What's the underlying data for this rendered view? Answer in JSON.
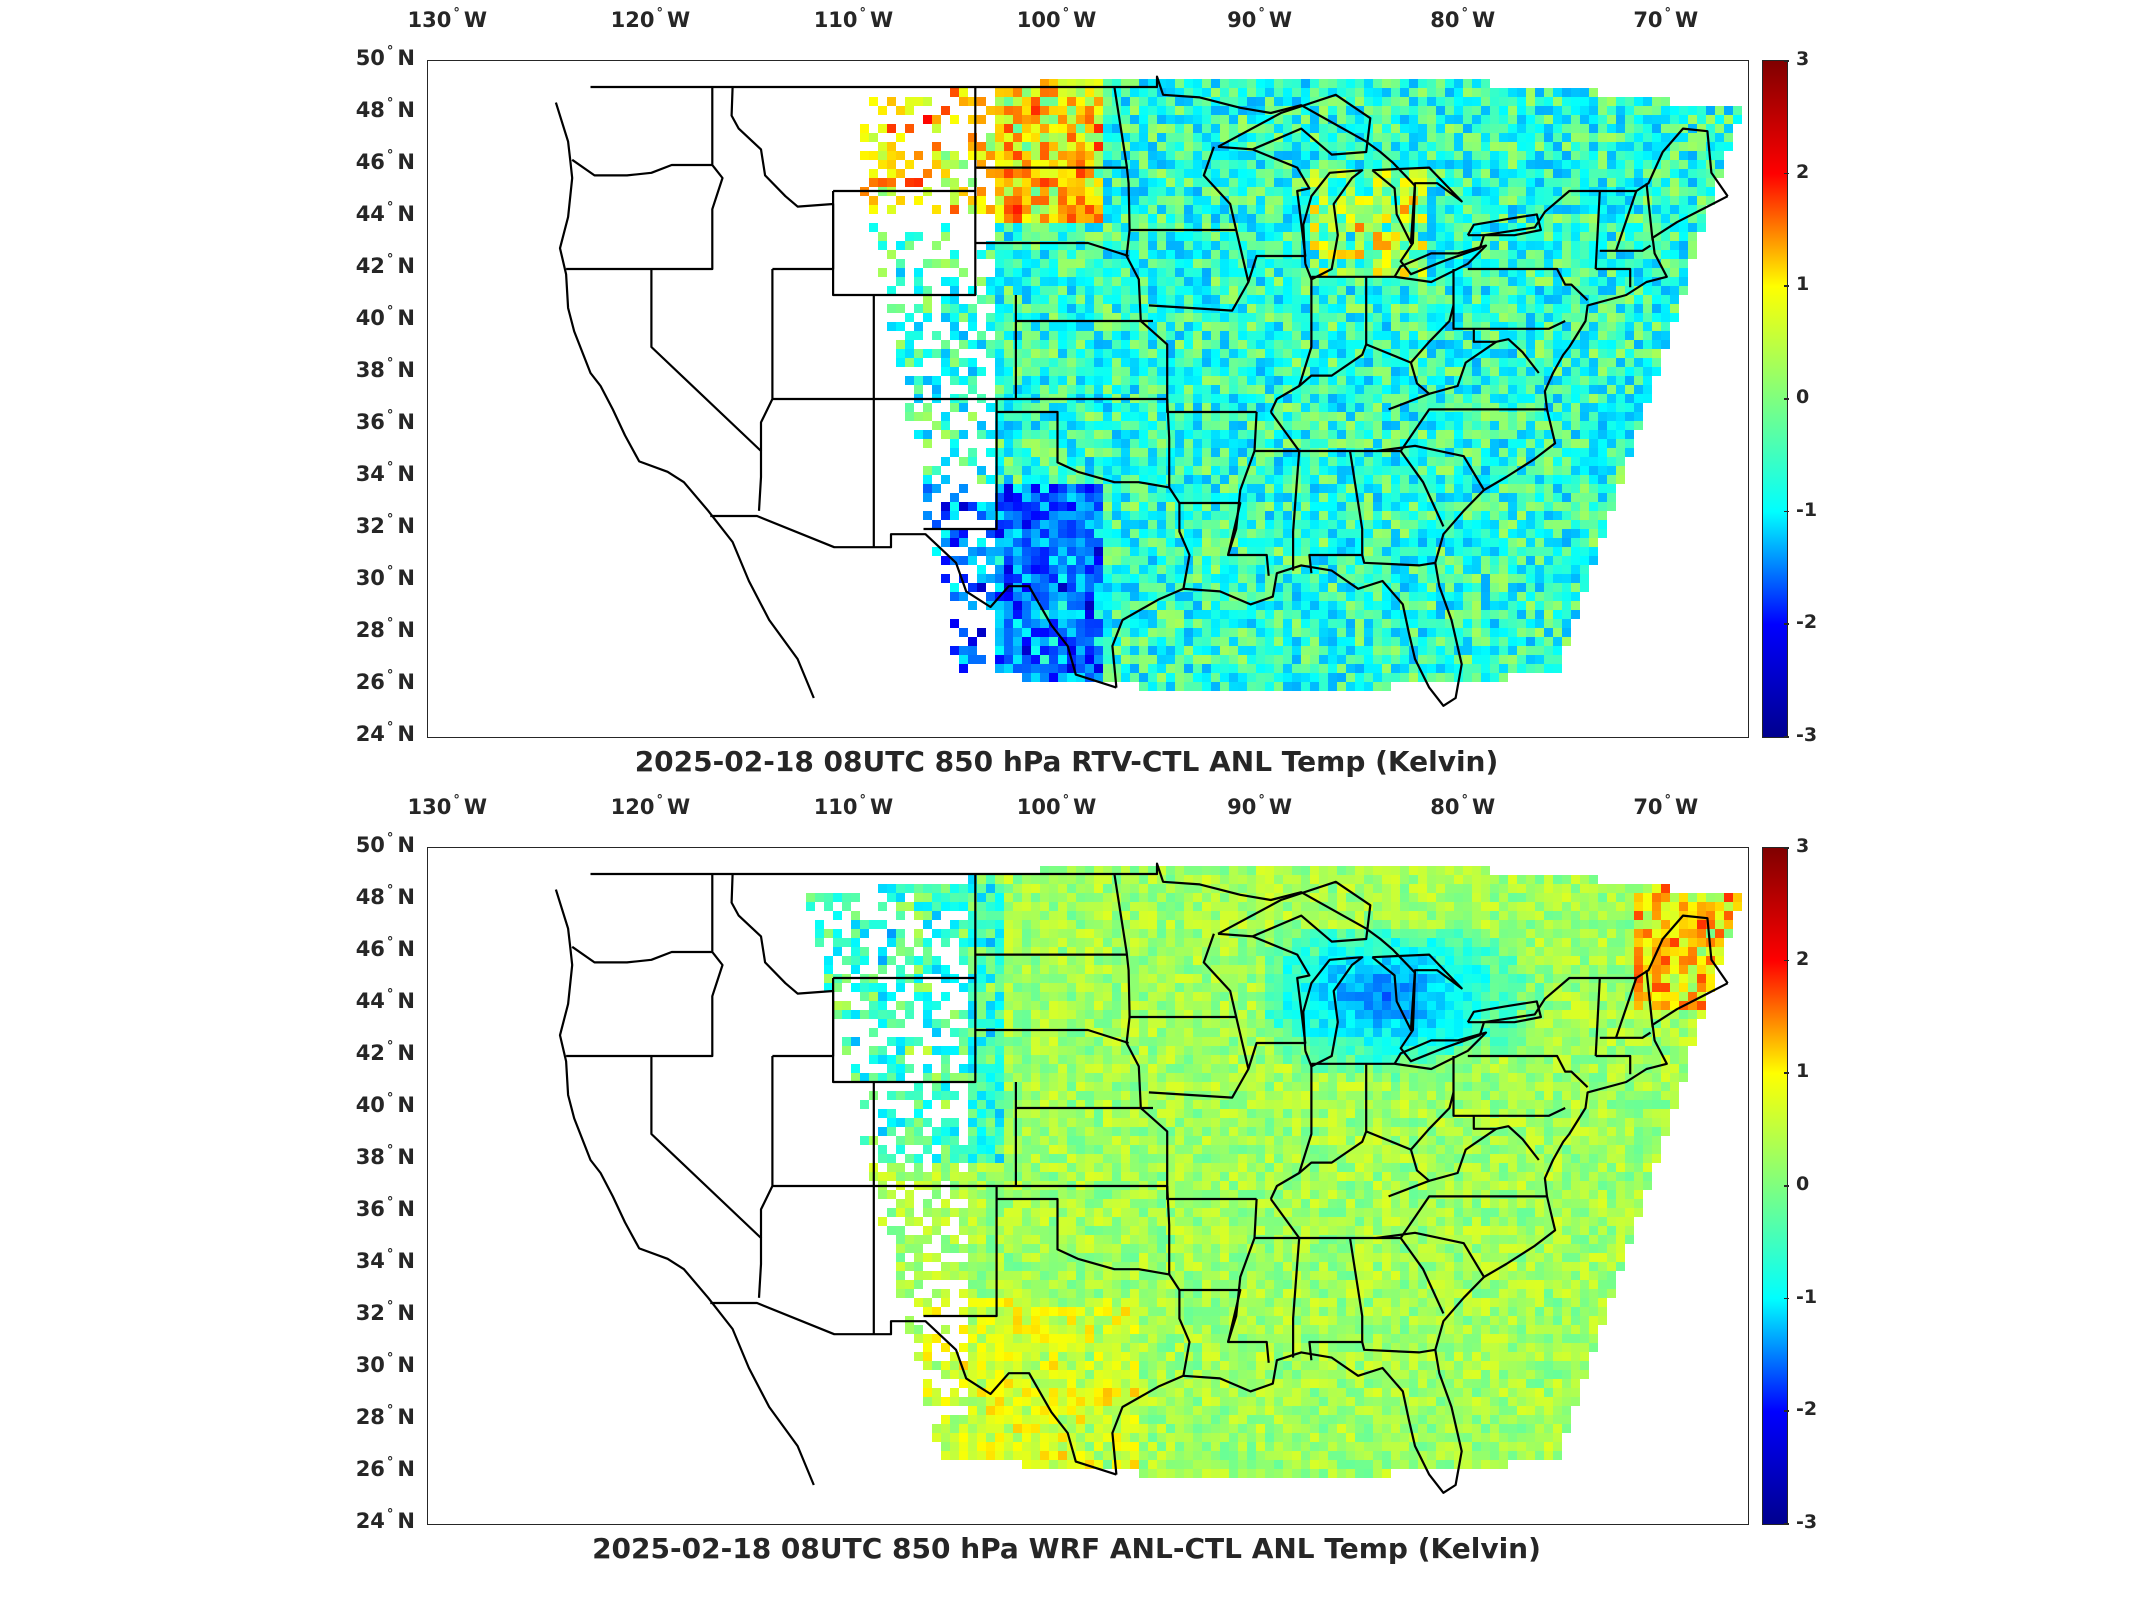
{
  "panels": [
    {
      "title": "2025-02-18 08UTC 850 hPa RTV-CTL ANL Temp (Kelvin)",
      "lon_labels": [
        "130",
        "120",
        "110",
        "100",
        "90",
        "80",
        "70"
      ],
      "lon_hemisphere": "W",
      "lat_labels": [
        "50",
        "48",
        "46",
        "44",
        "42",
        "40",
        "38",
        "36",
        "34",
        "32",
        "30",
        "28",
        "26",
        "24"
      ],
      "lat_hemisphere": "N",
      "colorbar_ticks": [
        "3",
        "2",
        "1",
        "0",
        "-1",
        "-2",
        "-3"
      ],
      "field_character": "noisy"
    },
    {
      "title": "2025-02-18 08UTC 850 hPa WRF ANL-CTL ANL Temp (Kelvin)",
      "lon_labels": [
        "130",
        "120",
        "110",
        "100",
        "90",
        "80",
        "70"
      ],
      "lon_hemisphere": "W",
      "lat_labels": [
        "50",
        "48",
        "46",
        "44",
        "42",
        "40",
        "38",
        "36",
        "34",
        "32",
        "30",
        "28",
        "26",
        "24"
      ],
      "lat_hemisphere": "N",
      "colorbar_ticks": [
        "3",
        "2",
        "1",
        "0",
        "-1",
        "-2",
        "-3"
      ],
      "field_character": "smooth"
    }
  ],
  "map": {
    "lon_range": [
      -131,
      -66
    ],
    "lat_range": [
      24,
      50
    ],
    "projection": "equirectangular"
  },
  "colorbar": {
    "range": [
      -3,
      3
    ],
    "colormap": "jet",
    "colors": [
      "#00008f",
      "#0000ff",
      "#00ffff",
      "#7fff7f",
      "#ffff00",
      "#ff0000",
      "#800000"
    ]
  }
}
